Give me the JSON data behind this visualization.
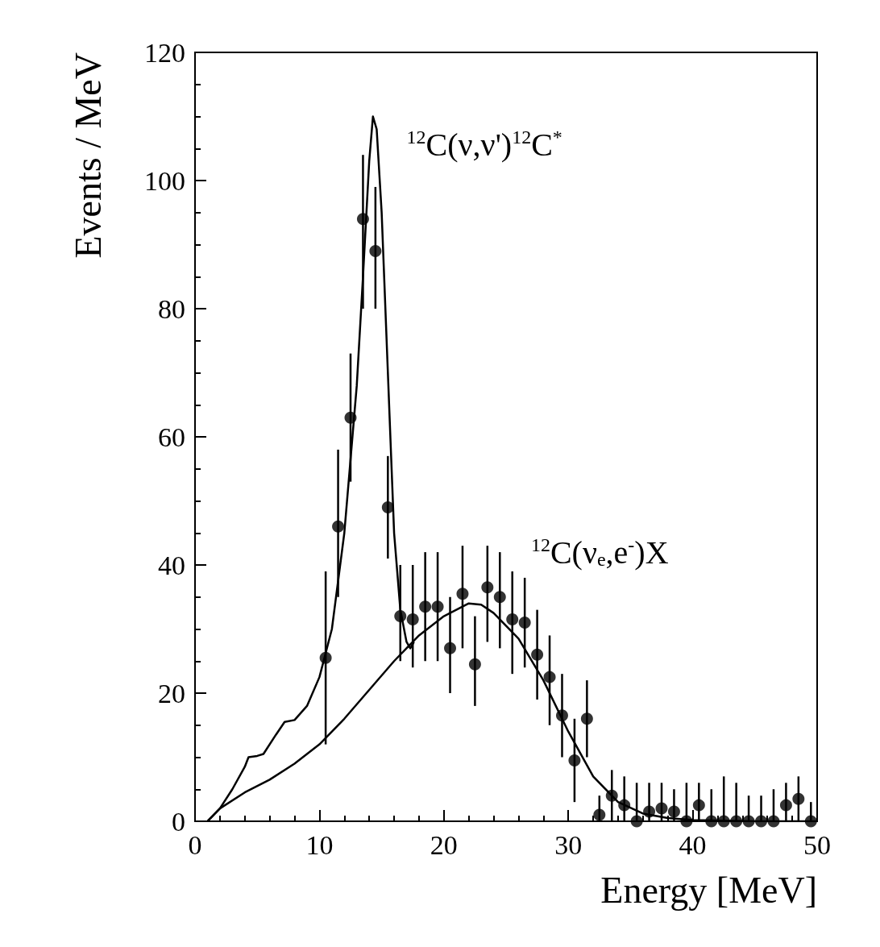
{
  "chart_data": {
    "type": "scatter",
    "xlabel": "Energy [MeV]",
    "ylabel": "Events / MeV",
    "xlim": [
      0,
      50
    ],
    "xticks": [
      0,
      10,
      20,
      30,
      40,
      50
    ],
    "ylim": [
      0,
      120
    ],
    "yticks": [
      0,
      20,
      40,
      60,
      80,
      100,
      120
    ],
    "grid": false,
    "marker": "circle",
    "annotations": [
      "$^{12}$C(ν,ν')$^{12}$C$^{*}$",
      "$^{12}$C(ν$_{e}$,e$^{-}$)X"
    ],
    "series": [
      {
        "color": "#000000",
        "x": [
          10.5,
          11.5,
          12.5,
          13.5,
          14.5,
          15.5,
          16.5,
          17.5,
          18.5,
          19.5,
          20.5,
          21.5,
          22.5,
          23.5,
          24.5,
          25.5,
          26.5,
          27.5,
          28.5,
          29.5,
          30.5,
          31.5,
          32.5,
          33.5,
          34.5,
          35.5,
          36.5,
          37.5,
          38.5,
          39.5,
          40.5,
          41.5,
          42.5,
          43.5,
          44.5,
          45.5,
          46.5,
          47.5,
          48.5,
          49.5
        ],
        "values": [
          25.5,
          46,
          63,
          94,
          89,
          49,
          32,
          31.5,
          33.5,
          33.5,
          27,
          35.5,
          24.5,
          36.5,
          35,
          31.5,
          31,
          26,
          22.5,
          16.5,
          9.5,
          16,
          1,
          4,
          2.5,
          0,
          1.5,
          2,
          1.5,
          0,
          2.5,
          0,
          0,
          0,
          0,
          0,
          0,
          2.5,
          3.5,
          0
        ],
        "errors": [
          [
            12,
            39
          ],
          [
            35,
            58
          ],
          [
            53,
            73
          ],
          [
            80,
            104
          ],
          [
            80,
            99
          ],
          [
            41,
            57
          ],
          [
            25,
            40
          ],
          [
            24,
            40
          ],
          [
            25,
            42
          ],
          [
            25,
            42
          ],
          [
            20,
            35
          ],
          [
            27,
            43
          ],
          [
            18,
            32
          ],
          [
            28,
            43
          ],
          [
            27,
            42
          ],
          [
            23,
            39
          ],
          [
            24,
            38
          ],
          [
            19,
            33
          ],
          [
            15,
            29
          ],
          [
            10,
            23
          ],
          [
            3,
            16
          ],
          [
            10,
            22
          ],
          [
            0,
            4
          ],
          [
            0,
            8
          ],
          [
            0,
            7
          ],
          [
            0,
            6
          ],
          [
            0,
            6
          ],
          [
            0,
            6
          ],
          [
            0,
            5
          ],
          [
            0,
            6
          ],
          [
            0,
            6
          ],
          [
            0,
            5
          ],
          [
            0,
            7
          ],
          [
            0,
            6
          ],
          [
            0,
            4
          ],
          [
            0,
            4
          ],
          [
            0,
            5
          ],
          [
            0,
            6
          ],
          [
            0,
            7
          ],
          [
            0,
            3
          ]
        ]
      },
      {
        "type": "line",
        "color": "#000000",
        "marker": "none",
        "x": [
          1,
          2,
          3,
          4,
          4.3,
          5,
          5.5,
          6.5,
          7.2,
          8,
          9,
          10,
          11,
          12,
          13,
          13.5,
          14,
          14.3,
          14.6,
          15,
          15.5,
          16,
          16.5,
          17,
          17.3,
          17.6
        ],
        "values": [
          0,
          2,
          5,
          8.5,
          10,
          10.2,
          10.5,
          13.5,
          15.5,
          15.8,
          18,
          22.5,
          30,
          45,
          68,
          85,
          103,
          110,
          108,
          95,
          70,
          45,
          33,
          28,
          27,
          28
        ]
      },
      {
        "type": "line",
        "color": "#000000",
        "marker": "none",
        "x": [
          1,
          2,
          4,
          6,
          8,
          10,
          12,
          14,
          16,
          18,
          20,
          22,
          23,
          24,
          26,
          28,
          30,
          32,
          34,
          36,
          38,
          40,
          45,
          50
        ],
        "values": [
          0,
          2,
          4.5,
          6.5,
          9,
          12,
          16,
          20.5,
          25,
          29,
          32,
          34,
          33.8,
          32.5,
          28.5,
          22,
          14,
          7,
          3,
          1.2,
          0.5,
          0.2,
          0,
          0
        ]
      }
    ]
  }
}
